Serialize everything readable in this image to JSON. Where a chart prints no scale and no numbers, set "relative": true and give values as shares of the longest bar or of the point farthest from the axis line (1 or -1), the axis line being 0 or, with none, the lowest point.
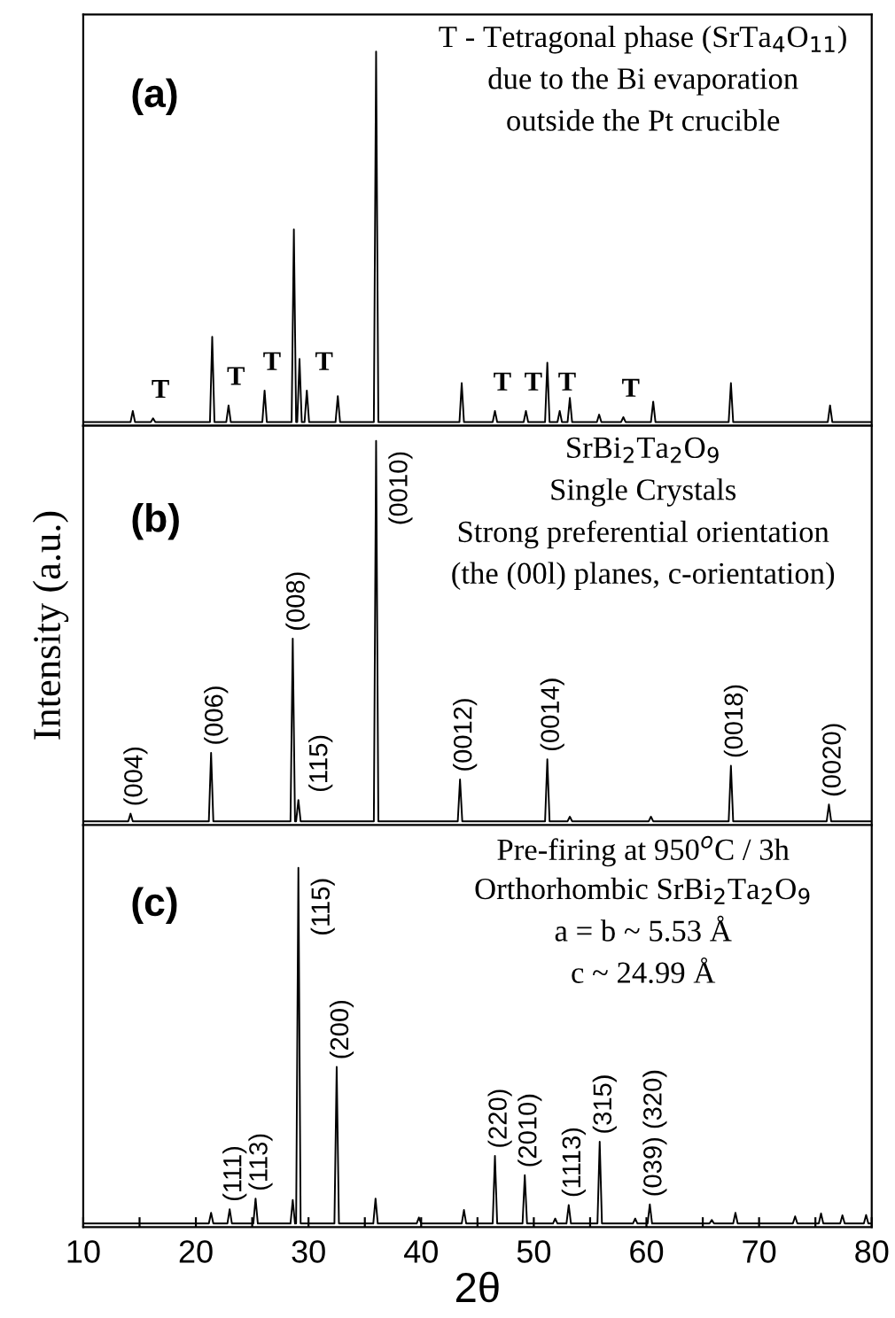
{
  "chart_data": [
    {
      "type": "line",
      "relative": true,
      "xlim": [
        10,
        80
      ],
      "tick_labels": false,
      "x": [
        10,
        14.2,
        14.4,
        14.6,
        16.0,
        16.2,
        16.4,
        21.25,
        21.45,
        21.65,
        22.7,
        22.9,
        23.1,
        25.9,
        26.1,
        26.3,
        28.5,
        28.7,
        28.9,
        29.0,
        29.2,
        29.4,
        29.65,
        29.85,
        30.05,
        32.4,
        32.6,
        32.8,
        35.8,
        36.0,
        36.2,
        43.4,
        43.6,
        43.8,
        46.35,
        46.55,
        46.75,
        49.1,
        49.3,
        49.5,
        51.0,
        51.2,
        51.4,
        52.1,
        52.3,
        52.5,
        53.0,
        53.2,
        53.4,
        55.6,
        55.8,
        56.0,
        57.75,
        57.95,
        58.15,
        60.4,
        60.6,
        60.8,
        67.3,
        67.5,
        67.7,
        76.1,
        76.3,
        76.5,
        80
      ],
      "series": [
        {
          "color": "#000000",
          "values": [
            0,
            0,
            0.03,
            0,
            0,
            0.01,
            0,
            0,
            0.23,
            0,
            0,
            0.045,
            0,
            0,
            0.085,
            0,
            0,
            0.52,
            0,
            0,
            0.17,
            0,
            0,
            0.085,
            0,
            0,
            0.07,
            0,
            0,
            1,
            0,
            0,
            0.105,
            0,
            0,
            0.03,
            0,
            0,
            0.03,
            0,
            0,
            0.16,
            0,
            0,
            0.03,
            0,
            0,
            0.065,
            0,
            0,
            0.02,
            0,
            0,
            0.013,
            0,
            0,
            0.055,
            0,
            0,
            0.105,
            0,
            0,
            0.045,
            0,
            0
          ]
        }
      ],
      "annotations": [
        "(a)",
        "T - Tetragonal phase (SrTa$_{4}$O$_{11}$)",
        "due to the Bi evaporation",
        "outside the Pt crucible",
        {
          "text": "T",
          "x": 16.2,
          "y": 0.01
        },
        {
          "text": "T",
          "x": 22.9,
          "y": 0.045
        },
        {
          "text": "T",
          "x": 26.1,
          "y": 0.085
        },
        {
          "text": "T",
          "x": 29.85,
          "y": 0.085
        },
        {
          "text": "T",
          "x": 46.55,
          "y": 0.03
        },
        {
          "text": "T",
          "x": 49.3,
          "y": 0.03
        },
        {
          "text": "T",
          "x": 52.3,
          "y": 0.03
        },
        {
          "text": "T",
          "x": 57.95,
          "y": 0.013
        }
      ]
    },
    {
      "type": "line",
      "relative": true,
      "xlim": [
        10,
        80
      ],
      "tick_labels": false,
      "ylabel": "Intensity (a.u.)",
      "x": [
        10,
        14.0,
        14.2,
        14.4,
        21.15,
        21.35,
        21.55,
        28.4,
        28.6,
        28.8,
        28.9,
        29.1,
        29.3,
        35.8,
        36.0,
        36.2,
        43.25,
        43.45,
        43.65,
        51.0,
        51.2,
        51.4,
        53.0,
        53.2,
        53.4,
        60.2,
        60.4,
        60.6,
        67.3,
        67.5,
        67.7,
        76.0,
        76.2,
        76.4,
        80
      ],
      "series": [
        {
          "color": "#000000",
          "values": [
            0,
            0,
            0.02,
            0,
            0,
            0.18,
            0,
            0,
            0.48,
            0,
            0,
            0.056,
            0,
            0,
            1,
            0,
            0,
            0.11,
            0,
            0,
            0.163,
            0,
            0,
            0.012,
            0,
            0,
            0.012,
            0,
            0,
            0.146,
            0,
            0,
            0.044,
            0,
            0
          ]
        }
      ],
      "annotations": [
        "(b)",
        "SrBi$_{2}$Ta$_{2}$O$_{9}$",
        "Single Crystals",
        "Strong preferential orientation",
        "(the (00l) planes, c-orientation)",
        {
          "text": "(004)",
          "x": 14.2,
          "y": 0.02
        },
        {
          "text": "(006)",
          "x": 21.35,
          "y": 0.18
        },
        {
          "text": "(008)",
          "x": 28.6,
          "y": 0.48
        },
        {
          "text": "(115)",
          "x": 29.1,
          "y": 0.056
        },
        {
          "text": "(0010)",
          "x": 36.0,
          "y": 1
        },
        {
          "text": "(0012)",
          "x": 43.45,
          "y": 0.11
        },
        {
          "text": "(0014)",
          "x": 51.2,
          "y": 0.163
        },
        {
          "text": "(0018)",
          "x": 67.5,
          "y": 0.146
        },
        {
          "text": "(0020)",
          "x": 76.2,
          "y": 0.044
        }
      ]
    },
    {
      "type": "line",
      "relative": true,
      "xlim": [
        10,
        80
      ],
      "tick_labels": "x",
      "xlabel": "2θ",
      "xticks": [
        10,
        {
          "value": 15,
          "label": null
        },
        20,
        {
          "value": 25,
          "label": null
        },
        30,
        {
          "value": 35,
          "label": null
        },
        40,
        {
          "value": 45,
          "label": null
        },
        50,
        {
          "value": 55,
          "label": null
        },
        60,
        {
          "value": 65,
          "label": null
        },
        70,
        {
          "value": 75,
          "label": null
        },
        80
      ],
      "x": [
        10,
        21.15,
        21.35,
        21.55,
        22.8,
        23.0,
        23.2,
        25.1,
        25.3,
        25.5,
        28.4,
        28.6,
        28.8,
        28.9,
        29.1,
        29.3,
        32.3,
        32.5,
        32.7,
        35.75,
        35.95,
        36.15,
        39.6,
        39.8,
        40.0,
        43.6,
        43.8,
        44.0,
        46.35,
        46.55,
        46.75,
        49.0,
        49.2,
        49.4,
        51.7,
        51.9,
        52.1,
        52.9,
        53.1,
        53.3,
        55.65,
        55.85,
        56.05,
        58.8,
        59.0,
        59.2,
        60.1,
        60.3,
        60.5,
        65.6,
        65.8,
        66.0,
        67.7,
        67.9,
        68.1,
        73.0,
        73.2,
        73.4,
        75.3,
        75.5,
        75.7,
        77.2,
        77.4,
        77.6,
        79.3,
        79.5,
        79.7,
        80
      ],
      "series": [
        {
          "color": "#000000",
          "values": [
            0,
            0,
            0.03,
            0,
            0,
            0.04,
            0,
            0,
            0.07,
            0,
            0,
            0.066,
            0,
            0,
            1,
            0,
            0,
            0.44,
            0,
            0,
            0.07,
            0,
            0,
            0.017,
            0,
            0,
            0.038,
            0,
            0,
            0.19,
            0,
            0,
            0.136,
            0,
            0,
            0.014,
            0,
            0,
            0.052,
            0,
            0,
            0.23,
            0,
            0,
            0.014,
            0,
            0,
            0.054,
            0,
            0,
            0.01,
            0,
            0,
            0.03,
            0,
            0,
            0.02,
            0,
            0,
            0.028,
            0,
            0,
            0.023,
            0,
            0,
            0.024,
            0,
            0
          ]
        }
      ],
      "annotations": [
        "(c)",
        "Pre-firing at 950$^{o}$C / 3h",
        "Orthorhombic SrBi$_{2}$Ta$_{2}$O$_{9}$",
        "a = b ~ 5.53 Å",
        "c ~ 24.99 Å",
        {
          "text": "(111)",
          "x": 23.0,
          "y": 0.04
        },
        {
          "text": "(113)",
          "x": 25.3,
          "y": 0.07
        },
        {
          "text": "(115)",
          "x": 29.1,
          "y": 1
        },
        {
          "text": "(200)",
          "x": 32.5,
          "y": 0.44
        },
        {
          "text": "(220)",
          "x": 46.55,
          "y": 0.19
        },
        {
          "text": "(2010)",
          "x": 49.2,
          "y": 0.136
        },
        {
          "text": "(1113)",
          "x": 53.1,
          "y": 0.052
        },
        {
          "text": "(315)",
          "x": 55.85,
          "y": 0.23
        },
        {
          "text": "(039) (320)",
          "x": 60.3,
          "y": 0.054
        }
      ]
    }
  ]
}
